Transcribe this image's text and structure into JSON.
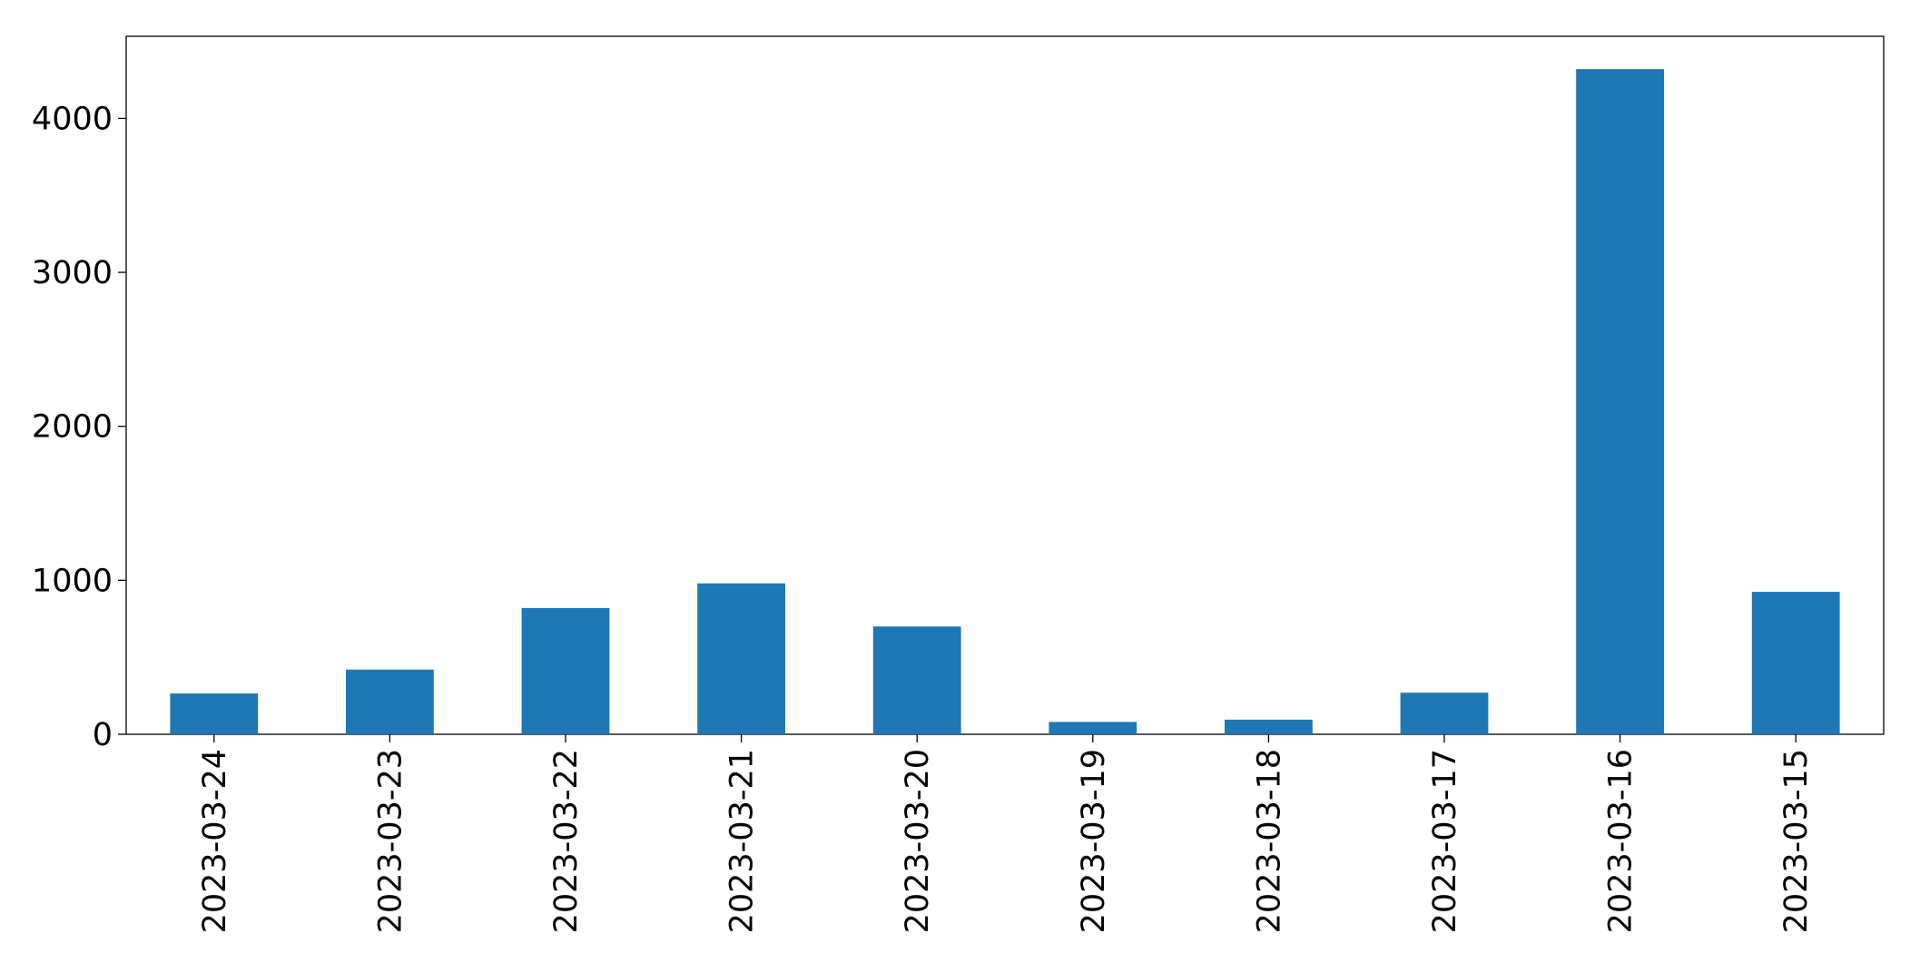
{
  "chart_data": {
    "type": "bar",
    "categories": [
      "2023-03-24",
      "2023-03-23",
      "2023-03-22",
      "2023-03-21",
      "2023-03-20",
      "2023-03-19",
      "2023-03-18",
      "2023-03-17",
      "2023-03-16",
      "2023-03-15"
    ],
    "values": [
      265,
      420,
      820,
      980,
      700,
      80,
      95,
      270,
      4320,
      925
    ],
    "color": "#1f77b4",
    "ylim": [
      0,
      4533
    ],
    "yticks": [
      0,
      1000,
      2000,
      3000,
      4000
    ],
    "grid": false
  }
}
